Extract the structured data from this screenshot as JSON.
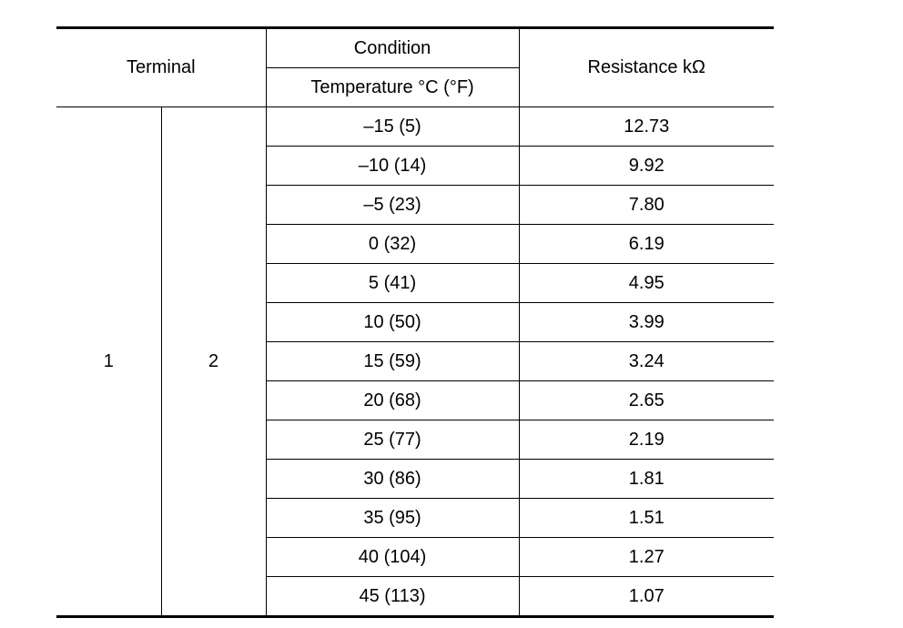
{
  "headers": {
    "terminal": "Terminal",
    "condition": "Condition",
    "temperature": "Temperature °C (°F)",
    "resistance": "Resistance kΩ"
  },
  "terminals": {
    "t1": "1",
    "t2": "2"
  },
  "rows": [
    {
      "temp": "–15 (5)",
      "resistance": "12.73"
    },
    {
      "temp": "–10 (14)",
      "resistance": "9.92"
    },
    {
      "temp": "–5 (23)",
      "resistance": "7.80"
    },
    {
      "temp": "0 (32)",
      "resistance": "6.19"
    },
    {
      "temp": "5 (41)",
      "resistance": "4.95"
    },
    {
      "temp": "10 (50)",
      "resistance": "3.99"
    },
    {
      "temp": "15 (59)",
      "resistance": "3.24"
    },
    {
      "temp": "20 (68)",
      "resistance": "2.65"
    },
    {
      "temp": "25 (77)",
      "resistance": "2.19"
    },
    {
      "temp": "30 (86)",
      "resistance": "1.81"
    },
    {
      "temp": "35 (95)",
      "resistance": "1.51"
    },
    {
      "temp": "40 (104)",
      "resistance": "1.27"
    },
    {
      "temp": "45 (113)",
      "resistance": "1.07"
    }
  ]
}
